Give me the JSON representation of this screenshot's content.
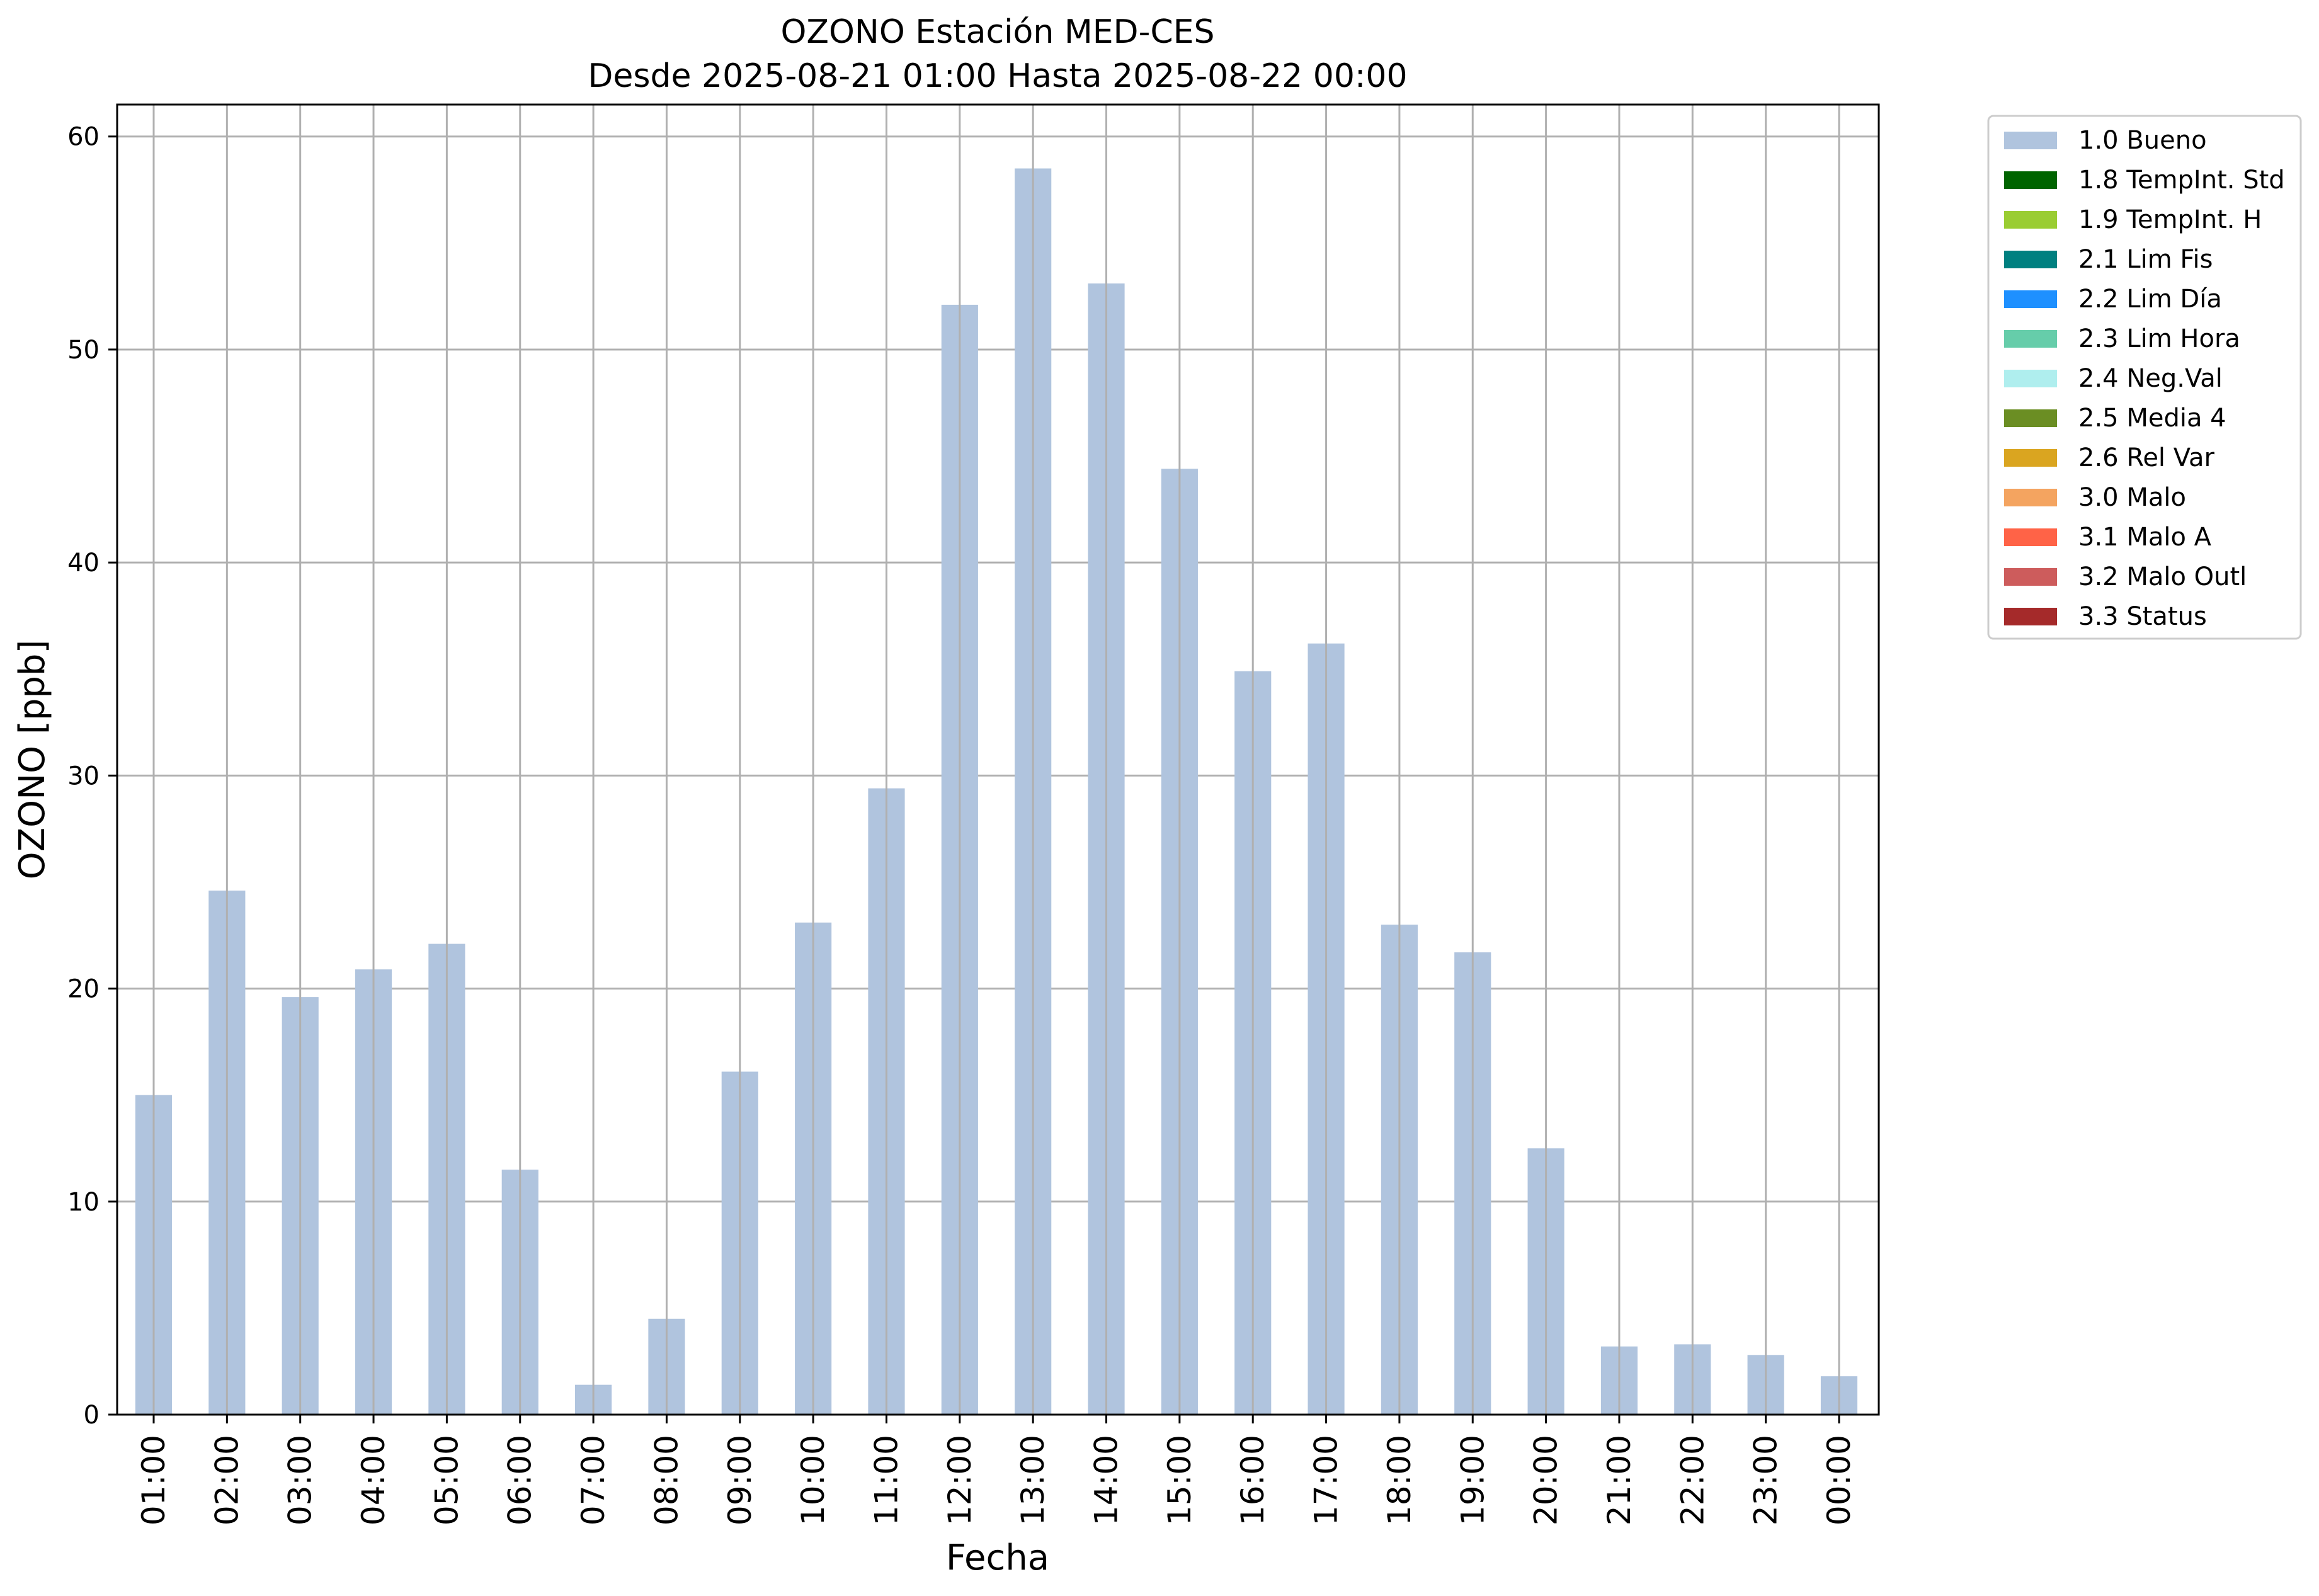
{
  "chart_data": {
    "type": "bar",
    "title": "OZONO Estación MED-CES",
    "subtitle": "Desde 2025-08-21 01:00 Hasta 2025-08-22 00:00",
    "xlabel": "Fecha",
    "ylabel": "OZONO [ppb]",
    "ylim": [
      0,
      61.5
    ],
    "yticks": [
      0,
      10,
      20,
      30,
      40,
      50,
      60
    ],
    "grid": true,
    "legend_position": "outside-top-right",
    "categories": [
      "01:00",
      "02:00",
      "03:00",
      "04:00",
      "05:00",
      "06:00",
      "07:00",
      "08:00",
      "09:00",
      "10:00",
      "11:00",
      "12:00",
      "13:00",
      "14:00",
      "15:00",
      "16:00",
      "17:00",
      "18:00",
      "19:00",
      "20:00",
      "21:00",
      "22:00",
      "23:00",
      "00:00"
    ],
    "series": [
      {
        "name": "1.0 Bueno",
        "color": "#b0c4de",
        "values": [
          15.0,
          24.6,
          19.6,
          20.9,
          22.1,
          11.5,
          1.4,
          4.5,
          16.1,
          23.1,
          29.4,
          52.1,
          58.5,
          53.1,
          44.4,
          34.9,
          36.2,
          23.0,
          21.7,
          12.5,
          3.2,
          3.3,
          2.8,
          1.8
        ]
      }
    ],
    "legend": [
      {
        "label": "1.0 Bueno",
        "color": "#b0c4de"
      },
      {
        "label": "1.8 TempInt. Std",
        "color": "#006400"
      },
      {
        "label": "1.9 TempInt. H",
        "color": "#9acd32"
      },
      {
        "label": "2.1 Lim Fis",
        "color": "#008080"
      },
      {
        "label": "2.2 Lim Día",
        "color": "#1e90ff"
      },
      {
        "label": "2.3 Lim Hora",
        "color": "#66cdaa"
      },
      {
        "label": "2.4 Neg.Val",
        "color": "#afeeee"
      },
      {
        "label": "2.5 Media 4",
        "color": "#6b8e23"
      },
      {
        "label": "2.6 Rel Var",
        "color": "#daa520"
      },
      {
        "label": "3.0 Malo",
        "color": "#f4a460"
      },
      {
        "label": "3.1 Malo A",
        "color": "#ff6347"
      },
      {
        "label": "3.2 Malo Outl",
        "color": "#cd5c5c"
      },
      {
        "label": "3.3 Status",
        "color": "#a52a2a"
      }
    ]
  }
}
